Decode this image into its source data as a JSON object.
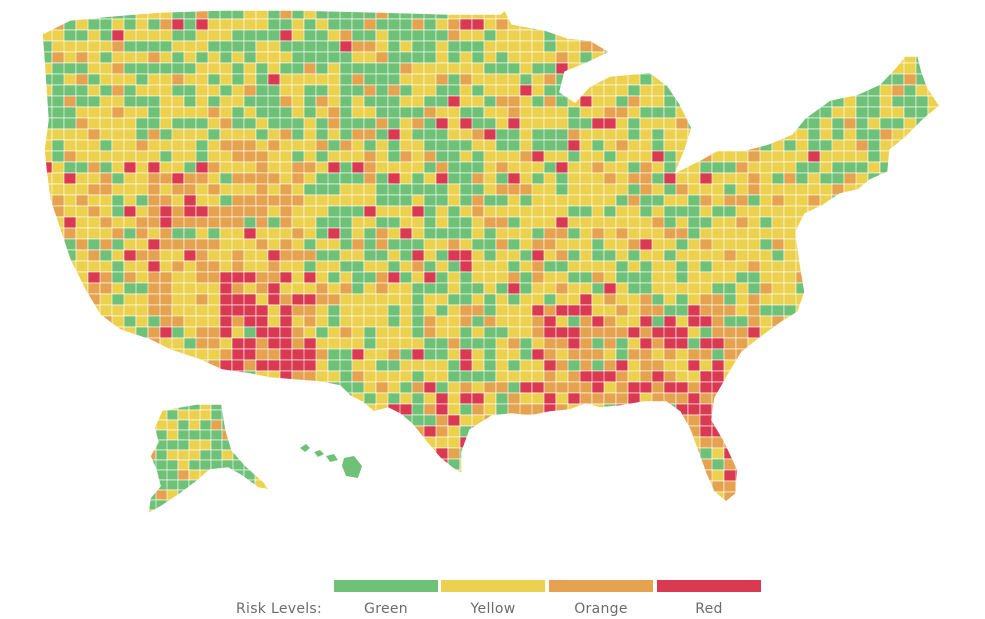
{
  "colors": {
    "green": "#6ec177",
    "yellow": "#ecd14e",
    "orange": "#e5a350",
    "red": "#d93a52",
    "border": "#ffffff"
  },
  "legend": {
    "title": "Risk Levels:",
    "items": [
      {
        "label": "Green",
        "color": "#6ec177"
      },
      {
        "label": "Yellow",
        "color": "#ecd14e"
      },
      {
        "label": "Orange",
        "color": "#e5a350"
      },
      {
        "label": "Red",
        "color": "#d93a52"
      }
    ]
  }
}
